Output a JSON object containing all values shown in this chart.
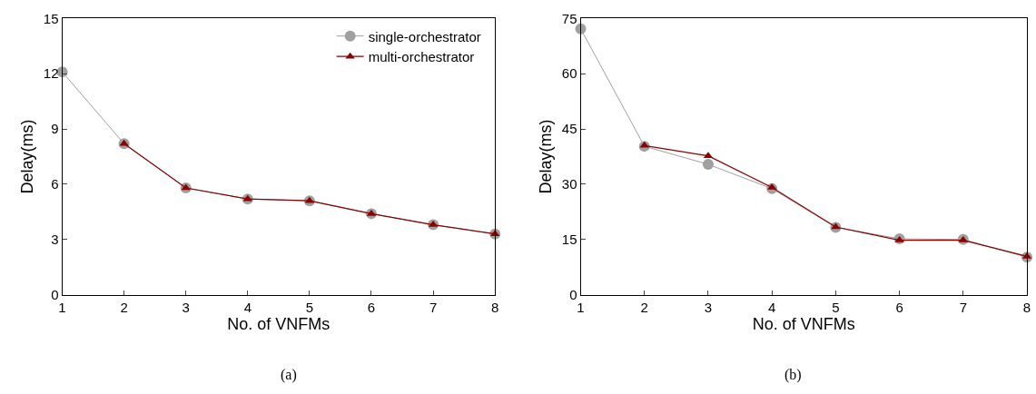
{
  "chart_data": [
    {
      "type": "line",
      "xlabel": "No. of VNFMs",
      "ylabel": "Delay(ms)",
      "x": [
        1,
        2,
        3,
        4,
        5,
        6,
        7,
        8
      ],
      "xlim": [
        1,
        8
      ],
      "xticks": [
        1,
        2,
        3,
        4,
        5,
        6,
        7,
        8
      ],
      "ylim": [
        0,
        15
      ],
      "yticks": [
        0,
        3,
        6,
        9,
        12,
        15
      ],
      "legend": "top right",
      "annotations": [
        "(a)"
      ],
      "series": [
        {
          "name": "single-orchestrator",
          "color": "#a0a0a0",
          "marker": "circle",
          "values": [
            12.1,
            8.2,
            5.8,
            5.2,
            5.1,
            4.4,
            3.8,
            3.3
          ]
        },
        {
          "name": "multi-orchestrator",
          "color": "#8b0000",
          "marker": "triangle",
          "values": [
            null,
            8.2,
            5.8,
            5.2,
            5.1,
            4.4,
            3.8,
            3.3
          ]
        }
      ]
    },
    {
      "type": "line",
      "xlabel": "No. of VNFMs",
      "ylabel": "Delay(ms)",
      "x": [
        1,
        2,
        3,
        4,
        5,
        6,
        7,
        8
      ],
      "xlim": [
        1,
        8
      ],
      "xticks": [
        1,
        2,
        3,
        4,
        5,
        6,
        7,
        8
      ],
      "ylim": [
        0,
        75
      ],
      "yticks": [
        0,
        15,
        30,
        45,
        60,
        75
      ],
      "annotations": [
        "(b)"
      ],
      "series": [
        {
          "color": "#a0a0a0",
          "marker": "circle",
          "values": [
            72.2,
            40.3,
            35.4,
            28.8,
            18.3,
            15.2,
            15.0,
            10.2
          ]
        },
        {
          "color": "#8b0000",
          "marker": "triangle",
          "values": [
            null,
            40.5,
            37.7,
            29.1,
            18.4,
            14.8,
            14.8,
            10.4
          ]
        }
      ]
    }
  ]
}
